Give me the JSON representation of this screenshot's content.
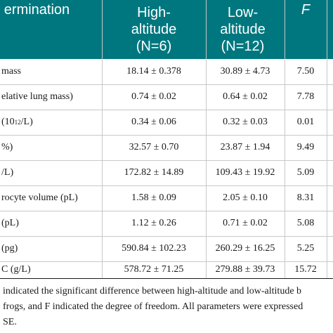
{
  "header": {
    "col0": "ermination",
    "col1_line1": "High-",
    "col1_line2": "altitude",
    "col1_line3": "(N=6)",
    "col2_line1": "Low-",
    "col2_line2": "altitude",
    "col2_line3": "(N=12)",
    "col3": "F"
  },
  "rows": [
    {
      "label": "mass",
      "high": "18.14 ± 0.378",
      "low": "30.89 ± 4.73",
      "f": "7.50"
    },
    {
      "label": "elative lung mass)",
      "high": "0.74 ± 0.02",
      "low": "0.64 ± 0.02",
      "f": "7.78"
    },
    {
      "label_pre": "(10",
      "label_sup": "12",
      "label_post": "/L)",
      "high": "0.34 ± 0.06",
      "low": "0.32 ± 0.03",
      "f": "0.01"
    },
    {
      "label": "%)",
      "high": "32.57 ± 0.70",
      "low": "23.87 ± 1.94",
      "f": "9.49"
    },
    {
      "label": "/L)",
      "high": "172.82 ± 14.89",
      "low": "109.43 ± 19.92",
      "f": "5.09"
    },
    {
      "label": "rocyte volume (pL)",
      "high": "1.58 ± 0.09",
      "low": "2.05 ± 0.10",
      "f": "8.31"
    },
    {
      "label": "(pL)",
      "high": "1.12 ± 0.26",
      "low": "0.71 ± 0.02",
      "f": "5.08"
    },
    {
      "label": "(pg)",
      "high": "590.84 ± 102.23",
      "low": "260.29 ± 16.25",
      "f": "5.25"
    },
    {
      "label": "C (g/L)",
      "high": "578.72 ± 71.25",
      "low": "279.88 ± 39.73",
      "f": "15.72"
    }
  ],
  "notes": {
    "line1": "indicated the significant difference between high-altitude and low-altitude b",
    "line2": "frogs, and F indicated the degree of freedom. All parameters were expressed",
    "line3": "SE."
  },
  "colors": {
    "header_bg": "#00777f",
    "header_text": "#ffffff"
  }
}
